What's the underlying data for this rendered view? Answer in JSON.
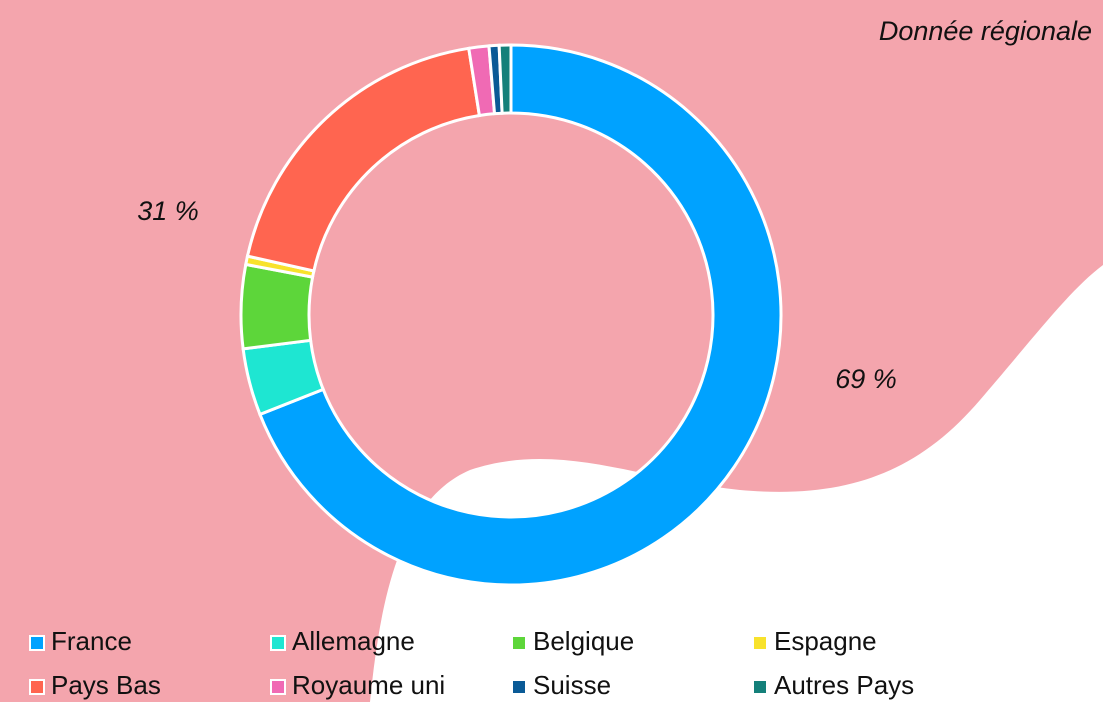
{
  "chart_data": {
    "type": "donut",
    "title": "Donnée régionale",
    "categories": [
      "France",
      "Allemagne",
      "Belgique",
      "Espagne",
      "Pays Bas",
      "Royaume uni",
      "Suisse",
      "Autres Pays"
    ],
    "values": [
      69,
      4,
      5,
      0.5,
      19,
      1.2,
      0.6,
      0.7
    ],
    "colors": [
      "#00a2ff",
      "#1ee6d2",
      "#5dd63a",
      "#f8e22c",
      "#ff6550",
      "#f06ab4",
      "#0a5a96",
      "#14807a"
    ],
    "annotations": [
      "31 %",
      "69 %"
    ]
  }
}
